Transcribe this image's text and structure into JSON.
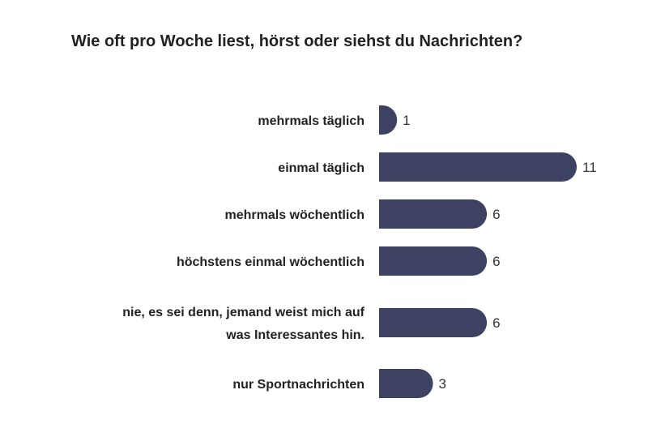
{
  "chart_data": {
    "type": "bar",
    "orientation": "horizontal",
    "title": "Wie oft pro Woche liest, hörst oder siehst du Nachrichten?",
    "categories": [
      [
        "mehrmals täglich"
      ],
      [
        "einmal täglich"
      ],
      [
        "mehrmals wöchentlich"
      ],
      [
        "höchstens einmal wöchentlich"
      ],
      [
        "nie, es sei denn, jemand weist mich auf",
        "was Interessantes hin."
      ],
      [
        "nur Sportnachrichten"
      ]
    ],
    "values": [
      1,
      11,
      6,
      6,
      6,
      3
    ],
    "bar_color": "#3d4262",
    "xlim": [
      0,
      11
    ],
    "grid": false,
    "legend": "none"
  }
}
